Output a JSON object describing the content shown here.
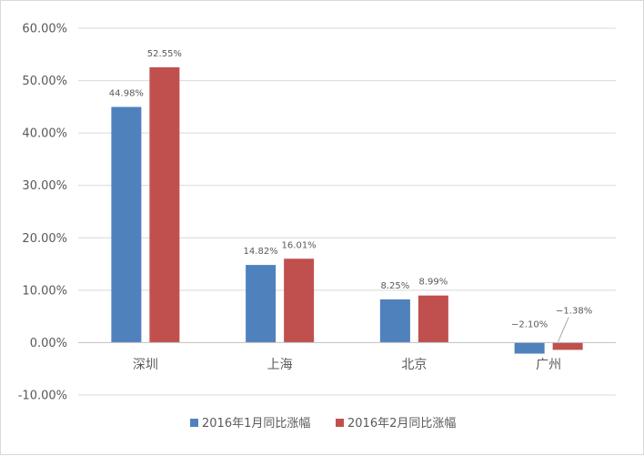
{
  "chart_data": {
    "type": "bar",
    "categories": [
      "深圳",
      "上海",
      "北京",
      "广州"
    ],
    "series": [
      {
        "name": "2016年1月同比涨幅",
        "values": [
          44.98,
          14.82,
          8.25,
          -2.1
        ],
        "labels": [
          "44.98%",
          "14.82%",
          "8.25%",
          "−2.10%"
        ],
        "color": "#4f81bd"
      },
      {
        "name": "2016年2月同比涨幅",
        "values": [
          52.55,
          16.01,
          8.99,
          -1.38
        ],
        "labels": [
          "52.55%",
          "16.01%",
          "8.99%",
          "−1.38%"
        ],
        "color": "#c0504d"
      }
    ],
    "ylim": [
      -10,
      60
    ],
    "yticks": [
      60,
      50,
      40,
      30,
      20,
      10,
      0,
      -10
    ],
    "ytick_labels": [
      "60.00%",
      "50.00%",
      "40.00%",
      "30.00%",
      "20.00%",
      "10.00%",
      "0.00%",
      "-10.00%"
    ],
    "grid": true,
    "legend_position": "bottom"
  }
}
